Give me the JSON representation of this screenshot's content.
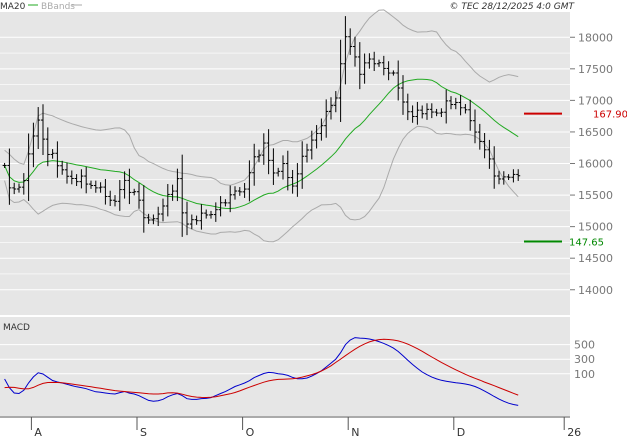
{
  "header": {
    "legend_ma": "MA20",
    "legend_bb": "BBands",
    "copyright": "© TEC 28/12/2025 4:0 GMT"
  },
  "macd_title": "MACD",
  "colors": {
    "background": "#ffffff",
    "panel": "#e6e6e6",
    "grid": "#ffffff",
    "candle": "#000000",
    "ma": "#22aa22",
    "bbands": "#aaaaaa",
    "resistance": "#cc0000",
    "support": "#008800",
    "macd": "#0000cc",
    "signal": "#cc0000",
    "axis_text": "#777777"
  },
  "chart_data": [
    {
      "type": "candlestick",
      "title": "",
      "ylabel": "",
      "ylim": [
        13600,
        18400
      ],
      "y_ticks": [
        "18000",
        "17500",
        "17000",
        "16500",
        "16000",
        "15500",
        "15000",
        "14500",
        "14000"
      ],
      "x_labels": [
        "A",
        "S",
        "O",
        "N",
        "D",
        "26"
      ],
      "x_label_index": [
        6,
        28,
        50,
        72,
        94,
        117
      ],
      "num_bars": 108,
      "close": [
        15969,
        15614,
        15596,
        15625,
        15730,
        16152,
        16436,
        16688,
        16386,
        16143,
        16162,
        15964,
        15900,
        15798,
        15762,
        15713,
        15801,
        15674,
        15651,
        15614,
        15626,
        15478,
        15418,
        15401,
        15587,
        15733,
        15542,
        15553,
        15419,
        15141,
        15105,
        15125,
        15200,
        15327,
        15510,
        15563,
        15760,
        15218,
        15041,
        15110,
        15094,
        15214,
        15185,
        15191,
        15268,
        15378,
        15376,
        15504,
        15564,
        15551,
        15595,
        15854,
        16106,
        16133,
        16324,
        16050,
        15850,
        15876,
        15999,
        15777,
        15643,
        15836,
        16115,
        16214,
        16371,
        16476,
        16599,
        16825,
        16922,
        17038,
        17580,
        18008,
        17853,
        17688,
        17413,
        17594,
        17655,
        17580,
        17596,
        17506,
        17433,
        17434,
        17196,
        16974,
        16820,
        16745,
        16845,
        16788,
        16858,
        16815,
        16799,
        16812,
        16992,
        16934,
        16966,
        16883,
        16851,
        16678,
        16498,
        16349,
        16217,
        16072,
        15802,
        15755,
        15788,
        15782,
        15827,
        15806
      ],
      "resistance": {
        "label": "167.90",
        "value": 16790
      },
      "support": {
        "label": "147.65",
        "value": 14765
      },
      "series": [
        {
          "name": "MA20",
          "type": "line"
        },
        {
          "name": "BBands",
          "type": "band"
        }
      ]
    },
    {
      "type": "line",
      "title": "MACD",
      "y_ticks": [
        "500",
        "300",
        "100"
      ],
      "ylim": [
        -480,
        880
      ],
      "series": [
        {
          "name": "MACD",
          "values": [
            28.6,
            -91.3,
            -164.4,
            -171.4,
            -126.7,
            -25.3,
            56.8,
            112.9,
            97.0,
            51.0,
            7.4,
            -12.8,
            -26.5,
            -44.4,
            -63.0,
            -78.6,
            -90.3,
            -105.4,
            -126.4,
            -147.6,
            -154.6,
            -163.7,
            -172.2,
            -178.2,
            -158.2,
            -142.9,
            -165.0,
            -178.1,
            -200.6,
            -234.4,
            -266.3,
            -277.9,
            -270.3,
            -250.6,
            -215.3,
            -188.1,
            -170.6,
            -200.4,
            -242.5,
            -252.3,
            -252.2,
            -240.7,
            -237.8,
            -226.6,
            -200.1,
            -170.5,
            -144.4,
            -110.3,
            -74.2,
            -51.4,
            -27.1,
            5.4,
            48.0,
            76.6,
            103.5,
            119.2,
            113.3,
            101.6,
            93.3,
            78.2,
            50.9,
            31.3,
            31.1,
            42.5,
            67.6,
            102.9,
            140.8,
            193.7,
            246.3,
            301.6,
            389.5,
            498.9,
            564.2,
            596.4,
            590.1,
            586.3,
            577.8,
            562.2,
            541.4,
            517.3,
            487.2,
            452.4,
            406.6,
            348.4,
            286.3,
            227.4,
            173.8,
            125.1,
            86.8,
            54.4,
            29.7,
            10.6,
            -2.2,
            -12.5,
            -23.8,
            -30.7,
            -40.1,
            -54.3,
            -74.8,
            -103.3,
            -137.6,
            -173.2,
            -211.6,
            -247.6,
            -278.0,
            -303.9,
            -322.3,
            -334.2
          ]
        },
        {
          "name": "Signal",
          "values": [
            -89.8,
            -84.6,
            -86.5,
            -97.7,
            -108.0,
            -106.1,
            -86.9,
            -57.4,
            -32.5,
            -19.4,
            -18.3,
            -20.1,
            -24.6,
            -31.8,
            -40.2,
            -50.0,
            -59.4,
            -69.2,
            -78.8,
            -89.2,
            -99.9,
            -110.6,
            -120.9,
            -130.7,
            -138.2,
            -143.6,
            -149.9,
            -155.4,
            -160.9,
            -167.2,
            -173.2,
            -177.7,
            -177.9,
            -172.5,
            -163.3,
            -160.5,
            -165.7,
            -180.8,
            -198.2,
            -211.7,
            -220.9,
            -225.0,
            -225.5,
            -222.3,
            -214.3,
            -202.9,
            -189.1,
            -174.6,
            -157.6,
            -135.3,
            -108.6,
            -84.7,
            -60.8,
            -37.6,
            -16.3,
            1.6,
            14.2,
            22.2,
            25.2,
            28.0,
            32.1,
            40.8,
            54.0,
            70.8,
            89.3,
            110.9,
            137.7,
            170.9,
            210.3,
            255.8,
            302.3,
            348.9,
            394.3,
            437.5,
            477.7,
            510.5,
            537.9,
            557.8,
            569.5,
            573.0,
            571.4,
            564.4,
            551.4,
            532.1,
            507.3,
            478.1,
            445.0,
            408.3,
            369.6,
            330.7,
            292.9,
            256.6,
            221.3,
            187.3,
            154.3,
            123.1,
            93.1,
            64.6,
            38.2,
            12.5,
            -13.7,
            -39.4,
            -64.1,
            -89.2,
            -115.7,
            -142.5,
            -168.5,
            -193.3
          ]
        }
      ]
    }
  ]
}
